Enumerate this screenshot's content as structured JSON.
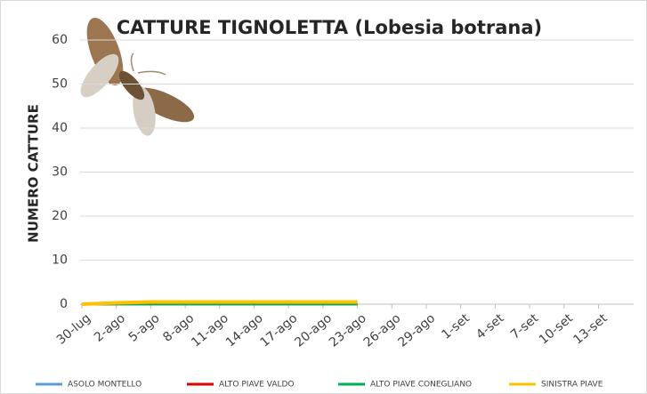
{
  "chart_data": {
    "type": "line",
    "title": "CATTURE TIGNOLETTA (Lobesia botrana)",
    "y_label": "NUMERO CATTURE",
    "categories": [
      "30-lug",
      "2-ago",
      "5-ago",
      "8-ago",
      "11-ago",
      "14-ago",
      "17-ago",
      "20-ago",
      "23-ago",
      "26-ago",
      "29-ago",
      "1-set",
      "4-set",
      "7-set",
      "10-set",
      "13-set"
    ],
    "series": [
      {
        "name": "ASOLO MONTELLO",
        "color": "#5b9bd5",
        "values": [
          0,
          0,
          0,
          0,
          0,
          0,
          0,
          0,
          0,
          null,
          null,
          null,
          null,
          null,
          null,
          null
        ]
      },
      {
        "name": "ALTO PIAVE VALDO",
        "color": "#e00000",
        "values": [
          0,
          0,
          0,
          0,
          0,
          0,
          0,
          0,
          0,
          null,
          null,
          null,
          null,
          null,
          null,
          null
        ]
      },
      {
        "name": "ALTO PIAVE CONEGLIANO",
        "color": "#00b050",
        "values": [
          0,
          0,
          0,
          0,
          0,
          0,
          0,
          0,
          0,
          null,
          null,
          null,
          null,
          null,
          null,
          null
        ]
      },
      {
        "name": "SINISTRA PIAVE",
        "color": "#ffc000",
        "values": [
          0,
          0.3,
          0.5,
          0.5,
          0.5,
          0.5,
          0.5,
          0.5,
          0.5,
          null,
          null,
          null,
          null,
          null,
          null,
          null
        ]
      }
    ],
    "ylim": [
      0,
      60
    ],
    "yticks": [
      0,
      10,
      20,
      30,
      40,
      50,
      60
    ],
    "grid": true
  }
}
